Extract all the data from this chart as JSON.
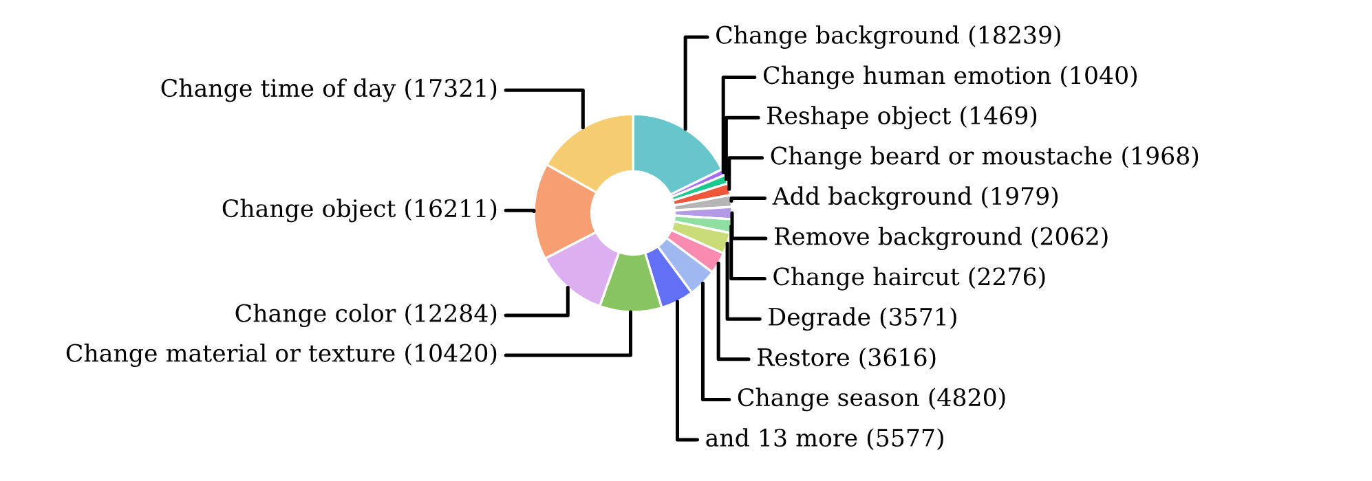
{
  "chart_data": {
    "type": "donut",
    "categories": [
      "Change background (18239)",
      "Change human emotion (1040)",
      "Reshape object (1469)",
      "Change beard or moustache (1968)",
      "Add background (1979)",
      "Remove background (2062)",
      "Change haircut (2276)",
      "Degrade (3571)",
      "Restore (3616)",
      "Change season (4820)",
      "and 13 more (5577)",
      "Change material or texture (10420)",
      "Change color (12284)",
      "Change object (16211)",
      "Change time of day (17321)"
    ],
    "values": [
      18239,
      1040,
      1469,
      1968,
      1979,
      2062,
      2276,
      3571,
      3616,
      4820,
      5577,
      10420,
      12284,
      16211,
      17321
    ],
    "colors": [
      "#67c5cc",
      "#a66cf5",
      "#1bc98e",
      "#f0563b",
      "#b5b5b5",
      "#b39ae6",
      "#8fe0a0",
      "#c9dc78",
      "#f98bb0",
      "#a0b8f0",
      "#6270f5",
      "#88c462",
      "#dcb0f0",
      "#f79e72",
      "#f5cd70"
    ]
  }
}
